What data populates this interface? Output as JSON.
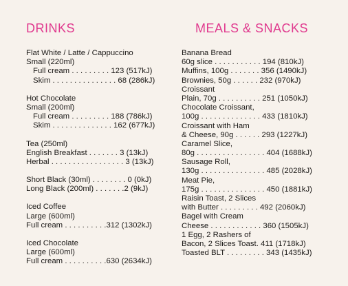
{
  "drinks": {
    "heading": "DRINKS",
    "blocks": [
      [
        "Flat White / Latte / Cappuccino",
        "Small (220ml)",
        "  Full cream . . . . . . . . . 123 (517kJ)",
        "  Skim . . . . . . . . . . . . . . . 68 (286kJ)"
      ],
      [
        "Hot Chocolate",
        "Small (200ml)",
        "  Full cream . . . . . . . . . 188 (786kJ)",
        "  Skim . . . . . . . . . . . . . . 162 (677kJ)"
      ],
      [
        "Tea (250ml)",
        "English Breakfast . . . . . . . 3 (13kJ)",
        "Herbal . . . . . . . . . . . . . . . . . 3 (13kJ)"
      ],
      [
        "Short Black (30ml) . . . . . . . . 0 (0kJ)",
        "Long Black (200ml) . . . . . . .2 (9kJ)"
      ],
      [
        "Iced Coffee",
        "Large (600ml)",
        "Full cream . . . . . . . . . .312 (1302kJ)"
      ],
      [
        "Iced Chocolate",
        "Large (600ml)",
        "Full cream . . . . . . . . . .630 (2634kJ)"
      ]
    ]
  },
  "meals": {
    "heading": "MEALS & SNACKS",
    "lines": [
      "Banana Bread",
      "60g slice . . . . . . . . . . . 194 (810kJ)",
      "Muffins, 100g . . . . . . . 356 (1490kJ)",
      "Brownies, 50g . . . . . . 232 (970kJ)",
      "Croissant",
      "Plain, 70g . . . . . . . . . . 251 (1050kJ)",
      "Chocolate Croissant,",
      "100g . . . . . . . . . . . . . . 433 (1810kJ)",
      "Croissant with Ham",
      "& Cheese, 90g . . . . . . 293 (1227kJ)",
      "Caramel Slice,",
      "80g . . . . . . . . . . . . . . . . 404 (1688kJ)",
      "Sausage Roll,",
      "130g . . . . . . . . . . . . . . . 485 (2028kJ)",
      "Meat Pie,",
      "175g . . . . . . . . . . . . . . . 450 (1881kJ)",
      "Raisin Toast, 2 Slices",
      "with Butter . . . . . . . . . 492 (2060kJ)",
      "Bagel with Cream",
      "Cheese . . . . . . . . . . . . 360 (1505kJ)",
      "1 Egg, 2 Rashers of",
      "Bacon, 2 Slices Toast. 411 (1718kJ)",
      "Toasted BLT . . . . . . . . . 343 (1435kJ)"
    ]
  },
  "colors": {
    "heading": "#e0398e",
    "background": "#f7f2ec",
    "text": "#1c1a18"
  }
}
